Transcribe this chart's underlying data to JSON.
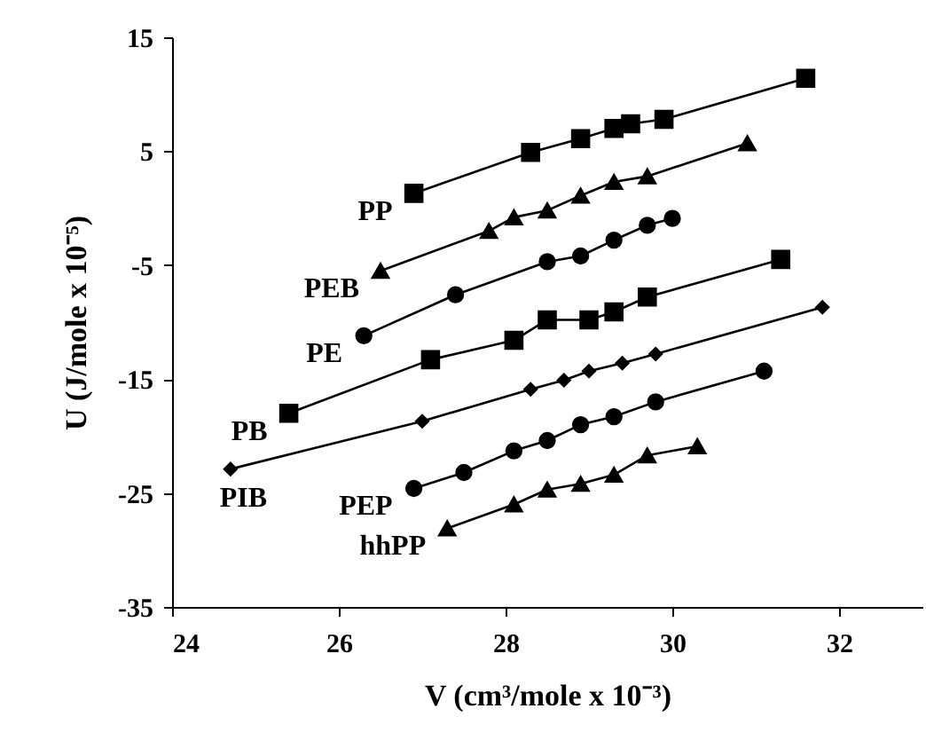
{
  "chart_data": {
    "type": "line",
    "xlabel": "V (cm³/mole x 10⁻³)",
    "ylabel": "U (J/mole x 10⁻⁵)",
    "xlim": [
      24,
      33
    ],
    "xticks": [
      24,
      26,
      28,
      30,
      32
    ],
    "ylim": [
      -35,
      15
    ],
    "yticks": [
      -35,
      -25,
      -15,
      -5,
      5,
      15
    ],
    "grid": false,
    "series": [
      {
        "name": "PP",
        "color": "#000000",
        "marker": "square",
        "x": [
          26.9,
          28.3,
          28.9,
          29.3,
          29.5,
          29.9,
          31.6
        ],
        "values": [
          1.3,
          4.9,
          6.1,
          7.0,
          7.4,
          7.8,
          11.4
        ]
      },
      {
        "name": "PEB",
        "color": "#000000",
        "marker": "triangle",
        "x": [
          26.5,
          27.8,
          28.1,
          28.5,
          28.9,
          29.3,
          29.7,
          30.9
        ],
        "values": [
          -5.5,
          -2.0,
          -0.8,
          -0.2,
          1.1,
          2.3,
          2.8,
          5.7
        ]
      },
      {
        "name": "PE",
        "color": "#000000",
        "marker": "circle",
        "x": [
          26.3,
          27.4,
          28.5,
          28.9,
          29.3,
          29.7,
          30.0
        ],
        "values": [
          -11.2,
          -7.6,
          -4.7,
          -4.2,
          -2.8,
          -1.5,
          -0.9
        ]
      },
      {
        "name": "PB",
        "color": "#000000",
        "marker": "square",
        "x": [
          25.4,
          27.1,
          28.1,
          28.5,
          29.0,
          29.3,
          29.7,
          31.3
        ],
        "values": [
          -18.0,
          -13.3,
          -11.6,
          -9.8,
          -9.8,
          -9.1,
          -7.8,
          -4.5
        ]
      },
      {
        "name": "PIB",
        "color": "#000000",
        "marker": "diamond",
        "x": [
          24.7,
          27.0,
          28.3,
          28.7,
          29.0,
          29.4,
          29.8,
          31.8
        ],
        "values": [
          -22.9,
          -18.7,
          -15.9,
          -15.1,
          -14.3,
          -13.6,
          -12.8,
          -8.7
        ]
      },
      {
        "name": "PEP",
        "color": "#000000",
        "marker": "circle",
        "x": [
          26.9,
          27.5,
          28.1,
          28.5,
          28.9,
          29.3,
          29.8,
          31.1
        ],
        "values": [
          -24.6,
          -23.2,
          -21.3,
          -20.4,
          -19.0,
          -18.3,
          -17.0,
          -14.3
        ]
      },
      {
        "name": "hhPP",
        "color": "#000000",
        "marker": "triangle",
        "x": [
          27.3,
          28.1,
          28.5,
          28.9,
          29.3,
          29.7,
          30.3
        ],
        "values": [
          -28.1,
          -26.0,
          -24.7,
          -24.2,
          -23.4,
          -21.7,
          -20.9
        ]
      }
    ]
  }
}
